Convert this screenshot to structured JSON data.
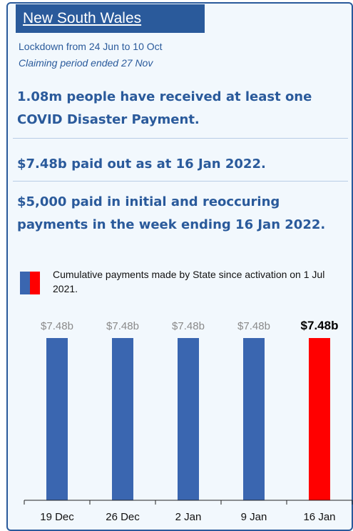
{
  "panel": {
    "title": "New South Wales",
    "lockdown": "Lockdown from 24 Jun to 10 Oct",
    "claiming": "Claiming period ended 27 Nov",
    "stat_people": "1.08m people have received at least one COVID Disaster Payment.",
    "stat_paid": "$7.48b paid out as at 16 Jan 2022.",
    "stat_week": "$5,000 paid in initial and reoccuring payments in the week ending 16 Jan 2022.",
    "legend": "Cumulative payments made by State since activation on 1 Jul 2021."
  },
  "colors": {
    "accent": "#2a5a9b",
    "bar": "#3a66b0",
    "highlight": "#ff0000"
  },
  "chart_data": {
    "type": "bar",
    "categories": [
      "19 Dec",
      "26 Dec",
      "2 Jan",
      "9 Jan",
      "16 Jan"
    ],
    "values": [
      7.48,
      7.48,
      7.48,
      7.48,
      7.48
    ],
    "labels": [
      "$7.48b",
      "$7.48b",
      "$7.48b",
      "$7.48b",
      "$7.48b"
    ],
    "highlight_index": 4,
    "ylim": [
      0,
      7.48
    ]
  }
}
